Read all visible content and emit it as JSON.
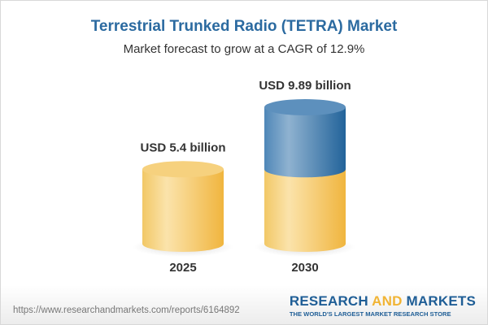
{
  "header": {
    "title": "Terrestrial Trunked Radio (TETRA) Market",
    "subtitle": "Market forecast to grow at a CAGR of 12.9%"
  },
  "chart_data": {
    "type": "bar",
    "style": "3d-cylinder",
    "categories": [
      "2025",
      "2030"
    ],
    "values": [
      5.4,
      9.89
    ],
    "value_labels": [
      "USD 5.4 billion",
      "USD 9.89 billion"
    ],
    "unit": "USD billion",
    "colors": {
      "base": "#f3c45e",
      "growth": "#3f78aa"
    },
    "grid": false
  },
  "footer": {
    "url": "https://www.researchandmarkets.com/reports/6164892",
    "logo_part1": "RESEARCH ",
    "logo_part2": "AND",
    "logo_part3": " MARKETS",
    "logo_tagline": "THE WORLD'S LARGEST MARKET RESEARCH STORE"
  }
}
